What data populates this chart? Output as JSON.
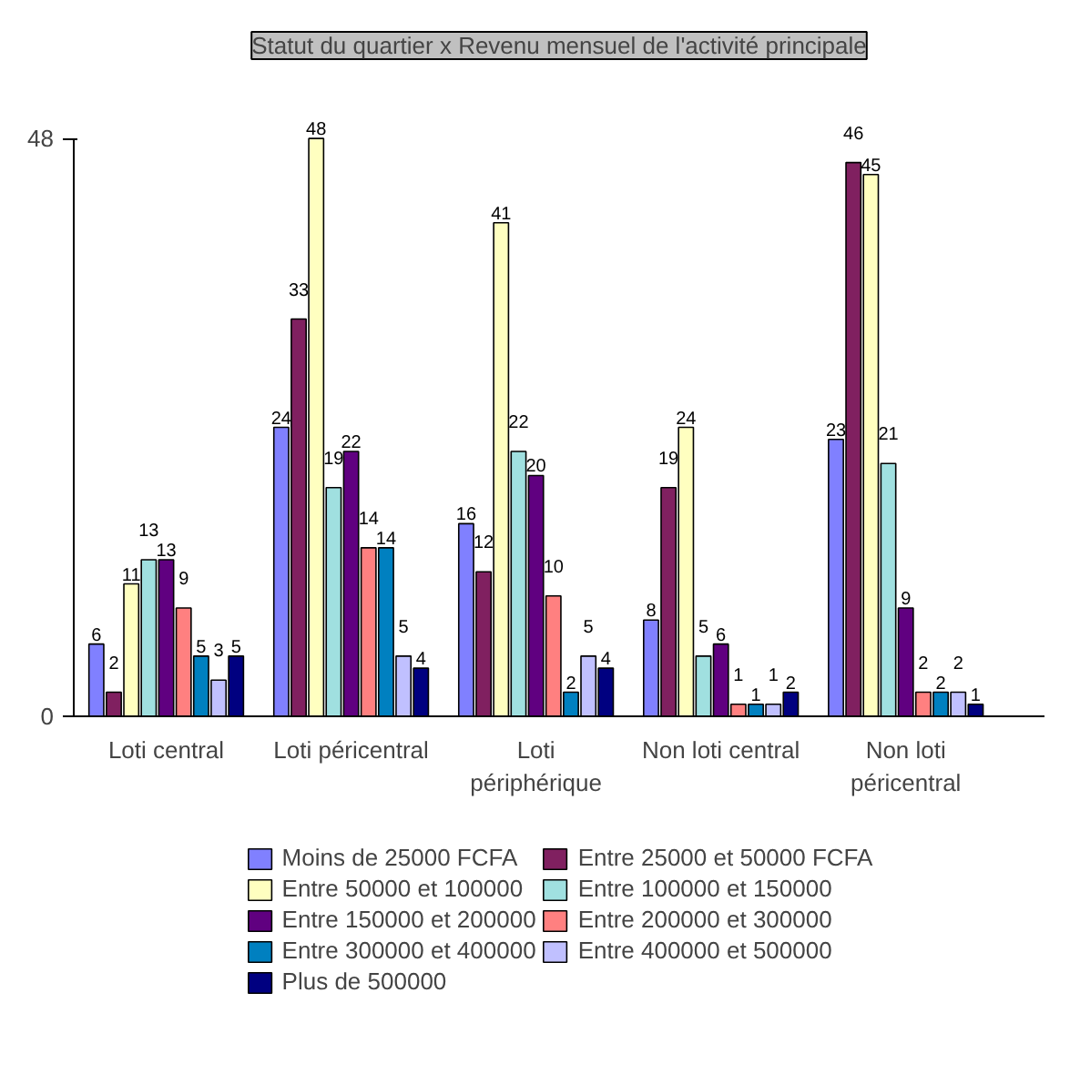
{
  "chart_data": {
    "type": "bar",
    "title": "Statut du quartier x Revenu mensuel de l'activité principale",
    "categories": [
      "Loti central",
      "Loti péricentral",
      "Loti périphérique",
      "Non loti central",
      "Non loti péricentral"
    ],
    "series": [
      {
        "name": "Moins de 25000 FCFA",
        "color": "#8080ff",
        "values": [
          6,
          24,
          16,
          8,
          23
        ]
      },
      {
        "name": "Entre 25000 et 50000 FCFA",
        "color": "#802060",
        "values": [
          2,
          33,
          12,
          19,
          46
        ]
      },
      {
        "name": "Entre 50000 et 100000",
        "color": "#ffffc0",
        "values": [
          11,
          48,
          41,
          24,
          45
        ]
      },
      {
        "name": "Entre 100000 et 150000",
        "color": "#a0e0e0",
        "values": [
          13,
          19,
          22,
          5,
          21
        ]
      },
      {
        "name": "Entre 150000 et 200000",
        "color": "#600080",
        "values": [
          13,
          22,
          20,
          6,
          9
        ]
      },
      {
        "name": "Entre 200000 et 300000",
        "color": "#ff8080",
        "values": [
          9,
          14,
          10,
          1,
          2
        ]
      },
      {
        "name": "Entre 300000 et 400000",
        "color": "#0080c0",
        "values": [
          5,
          14,
          2,
          1,
          2
        ]
      },
      {
        "name": "Entre 400000 et 500000",
        "color": "#c0c0ff",
        "values": [
          3,
          5,
          5,
          1,
          2
        ]
      },
      {
        "name": "Plus de 500000",
        "color": "#000080",
        "values": [
          5,
          4,
          4,
          2,
          1
        ]
      }
    ],
    "ylim": [
      0,
      48
    ],
    "yticks": [
      0,
      48
    ],
    "data_labels": true,
    "grid": false,
    "legend": "bottom"
  }
}
